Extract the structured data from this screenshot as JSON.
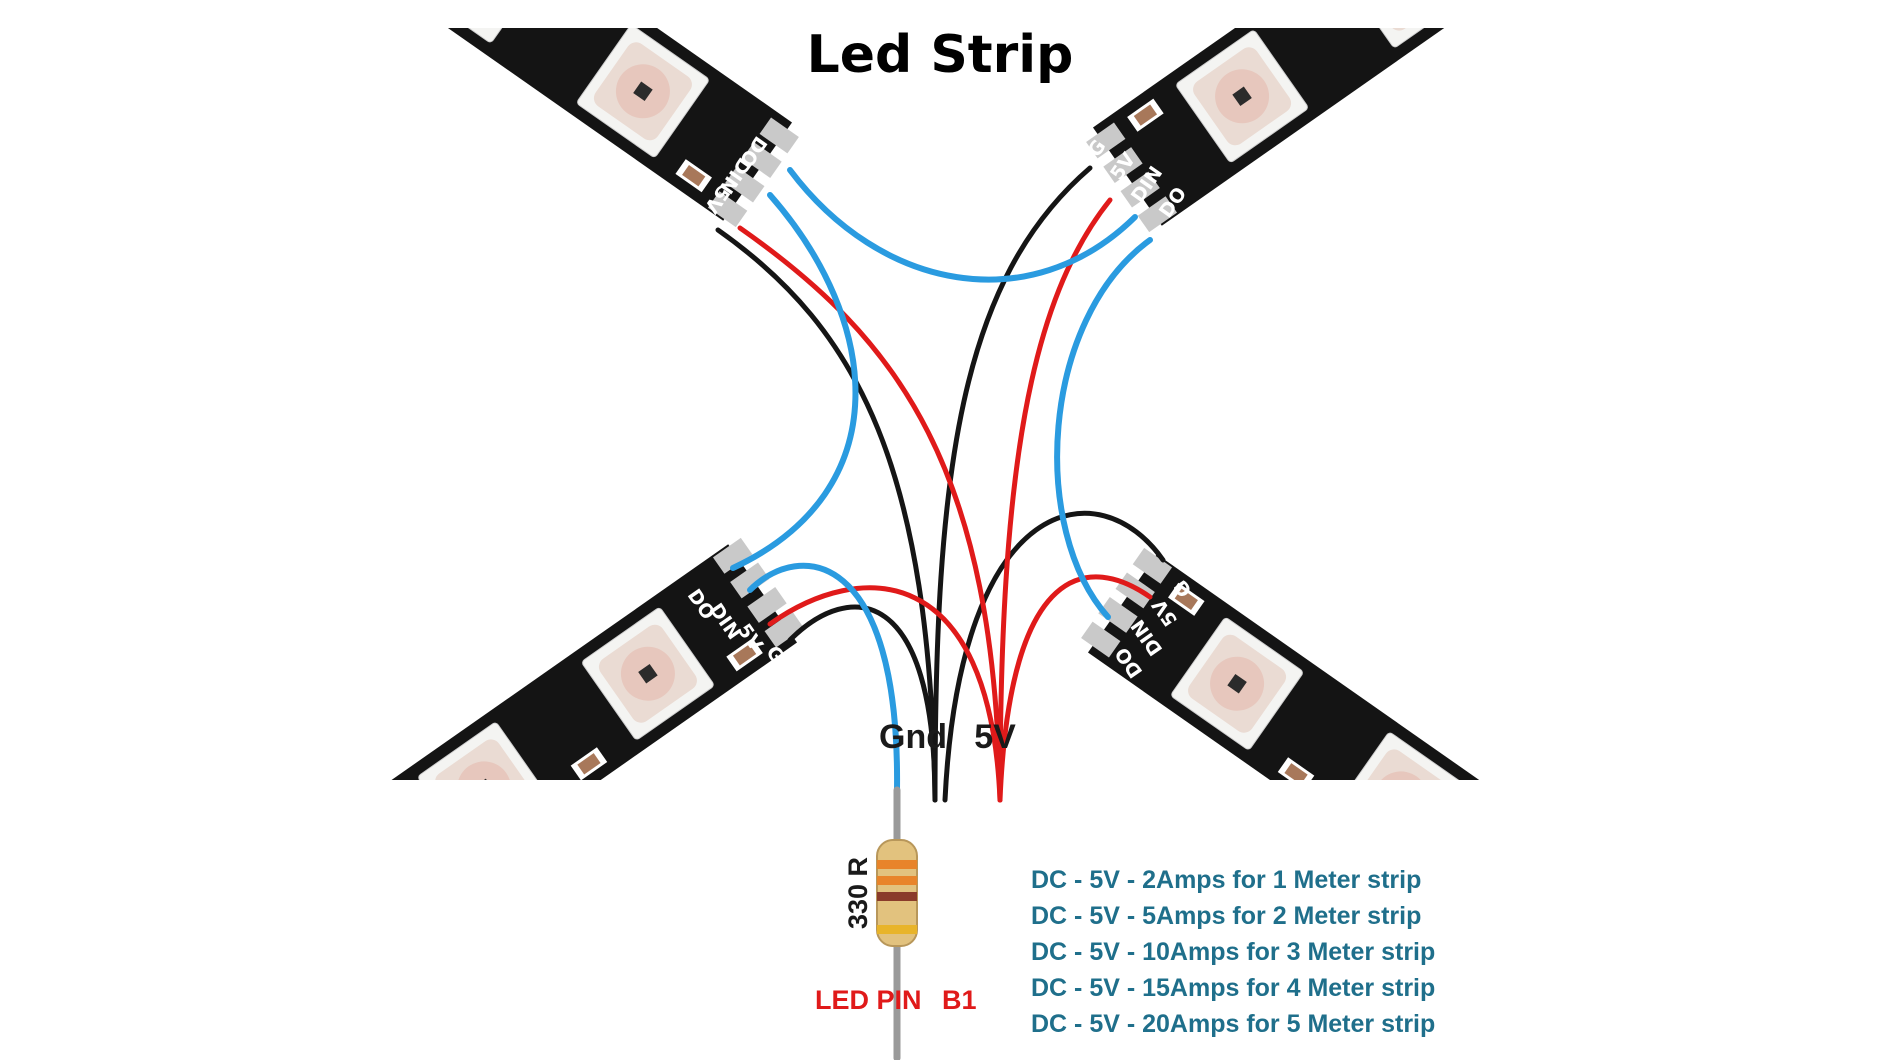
{
  "title": "Led Strip",
  "strips": {
    "top_left": {
      "labels": [
        "DO",
        "DIN",
        "5V",
        "G"
      ]
    },
    "top_right": {
      "labels": [
        "G",
        "5V",
        "DIN",
        "DO"
      ]
    },
    "bottom_left": {
      "labels": [
        "DO",
        "DIN",
        "5V",
        "G"
      ]
    },
    "bottom_right": {
      "labels": [
        "G",
        "5V",
        "DIN",
        "DO"
      ]
    }
  },
  "power": {
    "gnd_label": "Gnd",
    "vcc_label": "5V"
  },
  "resistor": {
    "label": "330 R"
  },
  "led_pin": {
    "label": "LED PIN",
    "pin": "B1"
  },
  "specs": [
    "DC - 5V - 2Amps for 1 Meter strip",
    "DC - 5V - 5Amps for 2 Meter strip",
    "DC - 5V - 10Amps for 3 Meter strip",
    "DC - 5V - 15Amps for 4 Meter strip",
    "DC - 5V - 20Amps for 5 Meter strip"
  ],
  "colors": {
    "data_wire": "#2a9be0",
    "power_wire": "#e01a1a",
    "ground_wire": "#151515",
    "pcb": "#141414",
    "spec_text": "#1f6f8b",
    "pin_text": "#e01a1a"
  }
}
